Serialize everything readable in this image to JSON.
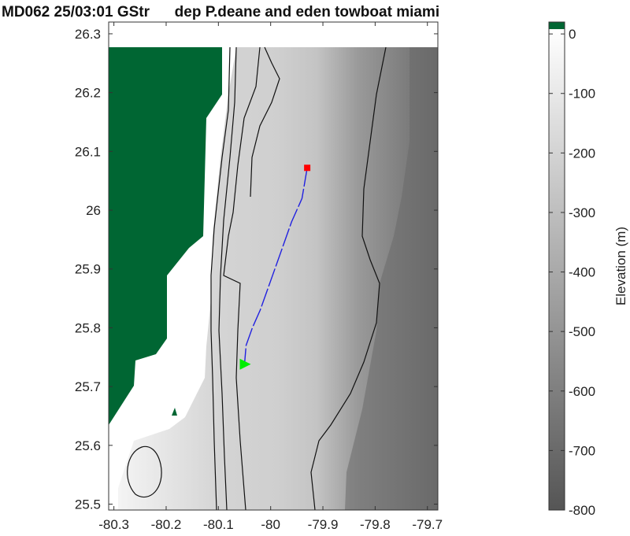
{
  "chart_data": {
    "type": "heatmap",
    "title": "MD062 25/03:01 GStr      dep P.deane and eden towboat miami",
    "xlabel": "",
    "ylabel": "",
    "xlim": [
      -80.31,
      -79.68
    ],
    "ylim": [
      25.49,
      26.32
    ],
    "x_ticks": [
      "-80.3",
      "-80.2",
      "-80.1",
      "-80",
      "-79.9",
      "-79.8",
      "-79.7"
    ],
    "x_tick_values": [
      -80.3,
      -80.2,
      -80.1,
      -80.0,
      -79.9,
      -79.8,
      -79.7
    ],
    "y_ticks": [
      "25.5",
      "25.6",
      "25.7",
      "25.8",
      "25.9",
      "26",
      "26.1",
      "26.2",
      "26.3"
    ],
    "y_tick_values": [
      25.5,
      25.6,
      25.7,
      25.8,
      25.9,
      26.0,
      26.1,
      26.2,
      26.3
    ],
    "colorbar": {
      "label": "Elevation (m)",
      "range": [
        -800,
        20
      ],
      "ticks": [
        "0",
        "-100",
        "-200",
        "-300",
        "-400",
        "-500",
        "-600",
        "-700",
        "-800"
      ],
      "tick_values": [
        0,
        -100,
        -200,
        -300,
        -400,
        -500,
        -600,
        -700,
        -800
      ],
      "land_color": "#006633"
    },
    "land_color": "#006633",
    "track_color": "#2020e0",
    "track": {
      "x": [
        -79.93,
        -79.94,
        -79.96,
        -79.98,
        -80.0,
        -80.02,
        -80.035,
        -80.047,
        -80.05
      ],
      "y": [
        26.072,
        26.02,
        25.98,
        25.93,
        25.88,
        25.83,
        25.8,
        25.77,
        25.738
      ]
    },
    "start_marker": {
      "lon": -79.93,
      "lat": 26.072,
      "shape": "square",
      "color": "#ff0000"
    },
    "end_marker": {
      "lon": -80.05,
      "lat": 25.738,
      "shape": "triangle-right",
      "color": "#00ee00"
    }
  }
}
